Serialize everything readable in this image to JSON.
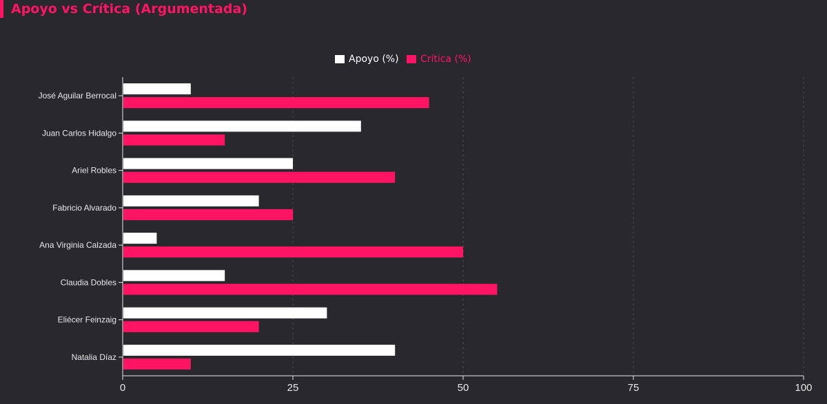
{
  "title": "Apoyo vs Crítica (Argumentada)",
  "colors": {
    "background": "#28282d",
    "accent": "#ff1464",
    "apoyo": "#ffffff",
    "critica": "#ff1464",
    "axis": "#e8e8e8",
    "grid": "#4a4a52"
  },
  "chart_data": {
    "type": "bar",
    "orientation": "horizontal",
    "categories": [
      "José Aguilar Berrocal",
      "Juan Carlos Hidalgo",
      "Ariel Robles",
      "Fabricio Alvarado",
      "Ana Virginia Calzada",
      "Claudia Dobles",
      "Eliécer Feinzaig",
      "Natalia Díaz"
    ],
    "series": [
      {
        "name": "Apoyo (%)",
        "color": "#ffffff",
        "values": [
          10,
          35,
          25,
          20,
          5,
          15,
          30,
          40
        ]
      },
      {
        "name": "Crítica (%)",
        "color": "#ff1464",
        "values": [
          45,
          15,
          40,
          25,
          50,
          55,
          20,
          10
        ]
      }
    ],
    "xlim": [
      0,
      100
    ],
    "xticks": [
      "0",
      "25",
      "50",
      "75",
      "100"
    ],
    "grid": "vertical dashed",
    "legend_position": "top-center"
  }
}
